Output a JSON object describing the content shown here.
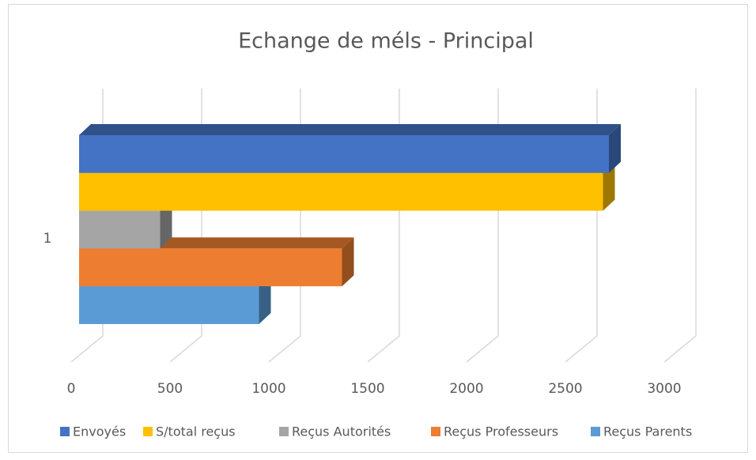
{
  "chart_data": {
    "type": "bar3d_horizontal",
    "title": "Echange de méls - Principal",
    "categories": [
      "1"
    ],
    "series": [
      {
        "name": "Envoyés",
        "color": "#4472c4",
        "values": [
          2680
        ]
      },
      {
        "name": "S/total reçus",
        "color": "#ffc000",
        "values": [
          2650
        ]
      },
      {
        "name": "Reçus Autorités",
        "color": "#a5a5a5",
        "values": [
          410
        ]
      },
      {
        "name": "Reçus Professeurs",
        "color": "#ed7d31",
        "values": [
          1330
        ]
      },
      {
        "name": "Reçus Parents",
        "color": "#5b9bd5",
        "values": [
          910
        ]
      }
    ],
    "xlim": [
      0,
      3000
    ],
    "xticks": [
      0,
      500,
      1000,
      1500,
      2000,
      2500,
      3000
    ],
    "grid": true,
    "legend": "bottom"
  }
}
